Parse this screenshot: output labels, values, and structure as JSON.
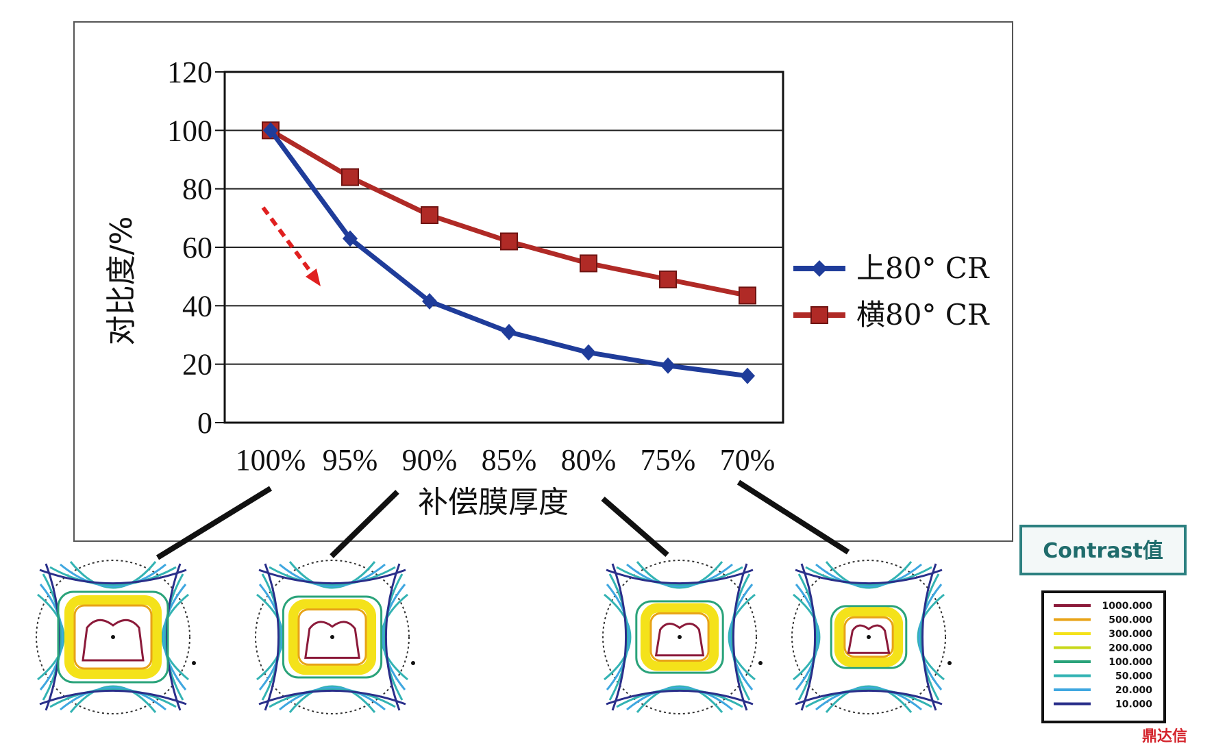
{
  "chart_data": {
    "type": "line",
    "categories": [
      "100%",
      "95%",
      "90%",
      "85%",
      "80%",
      "75%",
      "70%"
    ],
    "series": [
      {
        "name": "上80° CR",
        "color": "#1f3c9a",
        "marker": "diamond",
        "values": [
          100,
          63,
          41.5,
          31,
          24,
          19.5,
          16
        ]
      },
      {
        "name": "横80° CR",
        "color": "#b02a26",
        "marker": "square",
        "values": [
          100,
          84,
          71,
          62,
          54.5,
          49,
          43.5
        ]
      }
    ],
    "xlabel": "补偿膜厚度",
    "ylabel": "对比度/%",
    "ylim": [
      0,
      120
    ],
    "yticks": [
      "0",
      "20",
      "40",
      "60",
      "80",
      "100",
      "120"
    ],
    "grid": "horizontal",
    "legend": "right",
    "annotation": "red dashed arrow pointing down"
  },
  "contour_legend": {
    "title": "Contrast值",
    "levels": [
      {
        "label": "1000.000",
        "color": "#8b1a3a"
      },
      {
        "label": "500.000",
        "color": "#e8a317"
      },
      {
        "label": "300.000",
        "color": "#f4e21a"
      },
      {
        "label": "200.000",
        "color": "#c8d81a"
      },
      {
        "label": "100.000",
        "color": "#2aa37a"
      },
      {
        "label": "50.000",
        "color": "#33b3b3"
      },
      {
        "label": "20.000",
        "color": "#3fa7e0"
      },
      {
        "label": "10.000",
        "color": "#2a2f8a"
      }
    ]
  },
  "contour_plots": [
    {
      "category": "100%"
    },
    {
      "category": "95%"
    },
    {
      "category": "80%"
    },
    {
      "category": "70%"
    }
  ],
  "watermark": "鼎达信"
}
